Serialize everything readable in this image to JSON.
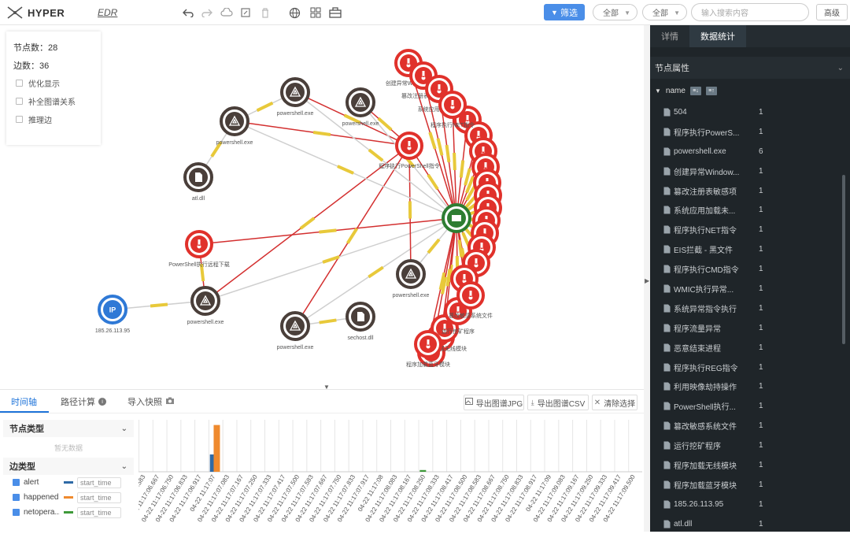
{
  "app": {
    "name": "HYPER",
    "module": "EDR"
  },
  "toolbar": {
    "filter_label": "筛选",
    "select1": "全部",
    "select2": "全部",
    "search_placeholder": "输入搜索内容",
    "advanced": "高级"
  },
  "stats": {
    "nodes": "节点数：28",
    "edges": "边数：36",
    "options": [
      "优化显示",
      "补全图谱关系",
      "推理边"
    ]
  },
  "graph": {
    "nodes": [
      {
        "label": "创建异常Window...",
        "type": "alert"
      },
      {
        "label": "篡改注册表敏感项",
        "type": "alert"
      },
      {
        "label": "系统应用加载未...",
        "type": "alert"
      },
      {
        "label": "程序执行NET指令",
        "type": "alert"
      },
      {
        "label": "程序执行PowerShell指令",
        "type": "alert"
      },
      {
        "label": "PowerShell执行远程下载",
        "type": "alert"
      },
      {
        "label": "程序加载无线模块",
        "type": "alert"
      },
      {
        "label": "程序加载蓝牙模块",
        "type": "alert"
      },
      {
        "label": "运行挖矿程序",
        "type": "alert"
      },
      {
        "label": "篡改敏感系统文件",
        "type": "alert"
      },
      {
        "label": "powershell.exe",
        "type": "process"
      },
      {
        "label": "atl.dll",
        "type": "file"
      },
      {
        "label": "sechost.dll",
        "type": "file"
      },
      {
        "label": "185.26.113.95",
        "type": "ip"
      }
    ],
    "ip_badge": "IP"
  },
  "bottom": {
    "tabs": [
      "时间轴",
      "路径计算",
      "导入快照"
    ],
    "actions": [
      "导出图谱JPG",
      "导出图谱CSV",
      "清除选择"
    ],
    "node_type_title": "节点类型",
    "node_type_empty": "暂无数据",
    "edge_type_title": "边类型",
    "edge_types": [
      {
        "name": "alert",
        "field": "start_time",
        "color": "#2f6aa6"
      },
      {
        "name": "happened",
        "field": "start_time",
        "color": "#ef8a2e"
      },
      {
        "name": "netopera...",
        "field": "start_time",
        "color": "#3f9a3a"
      }
    ]
  },
  "chart_data": {
    "type": "bar",
    "categories": [
      "06.583",
      "04-22 11:17:06.667",
      "04-22 11:17:06.750",
      "04-22 11:17:06.833",
      "04-22 11:17:06.917",
      "04-22 11:17:07",
      "04-22 11:17:07.083",
      "04-22 11:17:07.167",
      "04-22 11:17:07.250",
      "04-22 11:17:07.333",
      "04-22 11:17:07.417",
      "04-22 11:17:07.500",
      "04-22 11:17:07.583",
      "04-22 11:17:07.667",
      "04-22 11:17:07.750",
      "04-22 11:17:07.833",
      "04-22 11:17:07.917",
      "04-22 11:17:08",
      "04-22 11:17:08.083",
      "04-22 11:17:08.167",
      "04-22 11:17:08.250",
      "04-22 11:17:08.333",
      "04-22 11:17:08.417",
      "04-22 11:17:08.500",
      "04-22 11:17:08.583",
      "04-22 11:17:08.667",
      "04-22 11:17:08.750",
      "04-22 11:17:08.833",
      "04-22 11:17:08.917",
      "04-22 11:17:09",
      "04-22 11:17:09.083",
      "04-22 11:17:09.167",
      "04-22 11:17:09.250",
      "04-22 11:17:09.333",
      "04-22 11:17:09.417",
      "04-22 11:17:09.500"
    ],
    "series": [
      {
        "name": "alert",
        "values": [
          0,
          0,
          0,
          0,
          0,
          1,
          0,
          0,
          0,
          0,
          0,
          0,
          0,
          0,
          0,
          0,
          0,
          0,
          0,
          0,
          0,
          0,
          0,
          0,
          0,
          0,
          0,
          0,
          0,
          0,
          0,
          0,
          0,
          0,
          0,
          0
        ]
      },
      {
        "name": "happened",
        "values": [
          0,
          0,
          0,
          0,
          0,
          2.7,
          0,
          0,
          0,
          0,
          0,
          0,
          0,
          0,
          0,
          0,
          0,
          0,
          0,
          0,
          0,
          0,
          0,
          0,
          0,
          0,
          0,
          0,
          0,
          0,
          0,
          0,
          0,
          0,
          0,
          0
        ]
      },
      {
        "name": "netopera...",
        "values": [
          0,
          0,
          0,
          0,
          0,
          0,
          0,
          0,
          0,
          0,
          0,
          0,
          0,
          0,
          0,
          0,
          0,
          0,
          0,
          0,
          0.1,
          0,
          0,
          0,
          0,
          0,
          0,
          0,
          0,
          0,
          0,
          0,
          0,
          0,
          0,
          0
        ]
      }
    ],
    "ylim": [
      0,
      3
    ],
    "grid": true
  },
  "panel": {
    "tabs": [
      "详情",
      "数据统计"
    ],
    "section_title": "节点属性",
    "field": "name",
    "items": [
      {
        "label": "504",
        "count": "1"
      },
      {
        "label": "程序执行PowerS...",
        "count": "1"
      },
      {
        "label": "powershell.exe",
        "count": "6"
      },
      {
        "label": "创建异常Window...",
        "count": "1"
      },
      {
        "label": "篡改注册表敏感项",
        "count": "1"
      },
      {
        "label": "系统应用加载未...",
        "count": "1"
      },
      {
        "label": "程序执行NET指令",
        "count": "1"
      },
      {
        "label": "EIS拦截 - 黑文件",
        "count": "1"
      },
      {
        "label": "程序执行CMD指令",
        "count": "1"
      },
      {
        "label": "WMIC执行异常...",
        "count": "1"
      },
      {
        "label": "系统异常指令执行",
        "count": "1"
      },
      {
        "label": "程序流量异常",
        "count": "1"
      },
      {
        "label": "恶意结束进程",
        "count": "1"
      },
      {
        "label": "程序执行REG指令",
        "count": "1"
      },
      {
        "label": "利用映像劫持操作",
        "count": "1"
      },
      {
        "label": "PowerShell执行...",
        "count": "1"
      },
      {
        "label": "篡改敏感系统文件",
        "count": "1"
      },
      {
        "label": "运行挖矿程序",
        "count": "1"
      },
      {
        "label": "程序加载无线模块",
        "count": "1"
      },
      {
        "label": "程序加载蓝牙模块",
        "count": "1"
      },
      {
        "label": "185.26.113.95",
        "count": "1"
      },
      {
        "label": "atl.dll",
        "count": "1"
      }
    ]
  },
  "colors": {
    "alert": "#e0312b",
    "process": "#4a3f3a",
    "net": "#2e7d32",
    "ip": "#2f79d6",
    "accent": "#4a8ee8"
  }
}
